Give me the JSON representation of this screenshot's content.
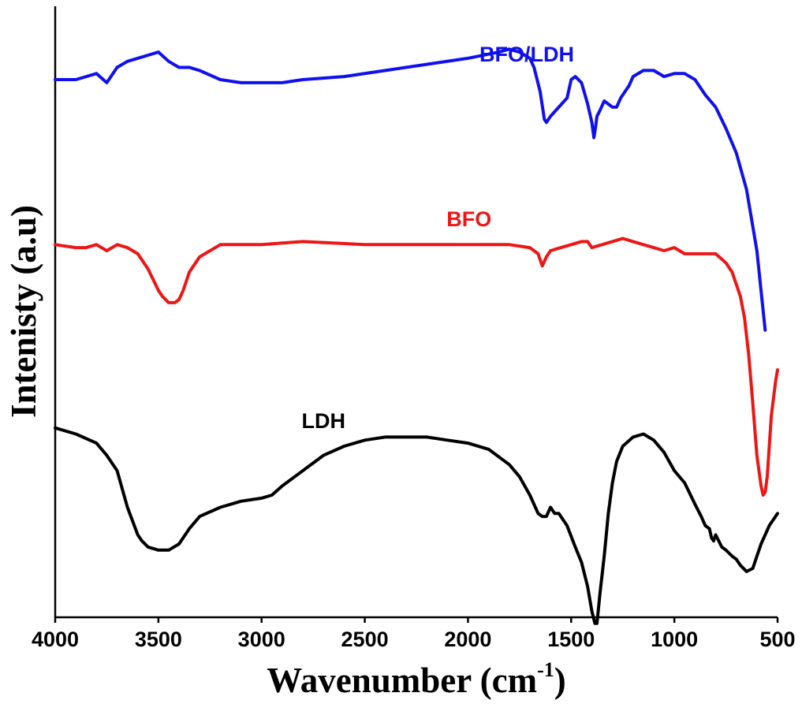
{
  "chart_data": {
    "type": "line",
    "title": "",
    "xlabel_main": "Wavenumber (cm",
    "xlabel_sup": "-1",
    "xlabel_close": ")",
    "ylabel": "Intenisty (a.u)",
    "xlim": [
      4000,
      500
    ],
    "x_reversed": true,
    "ylim": [
      0,
      100
    ],
    "grid": false,
    "legend": "labels placed next to each curve",
    "x_ticks": [
      4000,
      3500,
      3000,
      2500,
      2000,
      1500,
      1000,
      500
    ],
    "x_tick_labels": [
      "4000",
      "3500",
      "3000",
      "2500",
      "2000",
      "1500",
      "1000",
      "500"
    ],
    "series": [
      {
        "name": "BFO/LDH",
        "color": "#1010ee",
        "label_x": 1715,
        "label_y": 91,
        "x": [
          4000,
          3900,
          3800,
          3750,
          3700,
          3650,
          3600,
          3550,
          3500,
          3450,
          3400,
          3350,
          3300,
          3200,
          3100,
          3000,
          2900,
          2800,
          2600,
          2400,
          2200,
          2000,
          1850,
          1800,
          1750,
          1700,
          1680,
          1650,
          1630,
          1620,
          1600,
          1560,
          1520,
          1500,
          1480,
          1450,
          1420,
          1400,
          1390,
          1385,
          1375,
          1360,
          1340,
          1300,
          1280,
          1260,
          1220,
          1200,
          1150,
          1100,
          1050,
          1000,
          950,
          900,
          850,
          800,
          750,
          700,
          650,
          600,
          560
        ],
        "y": [
          88,
          88,
          89,
          87.5,
          90,
          91,
          91.5,
          92,
          92.5,
          91,
          90,
          90,
          89.5,
          88,
          87.5,
          87.5,
          87.5,
          88,
          88.5,
          89.5,
          90.5,
          91.5,
          92.5,
          93,
          92.5,
          91.5,
          90,
          86,
          81.5,
          81,
          82,
          83.5,
          85,
          88,
          88.5,
          87.5,
          84,
          81,
          78.5,
          79.5,
          82,
          83,
          84.5,
          83.5,
          83.5,
          85,
          87,
          88.5,
          89.5,
          89.5,
          88.5,
          89,
          89,
          88,
          85.5,
          83.5,
          80,
          76,
          70,
          60,
          47
        ]
      },
      {
        "name": "BFO",
        "color": "#ee1515",
        "label_x": 1995,
        "label_y": 64,
        "x": [
          4000,
          3900,
          3850,
          3800,
          3750,
          3700,
          3650,
          3600,
          3550,
          3500,
          3480,
          3450,
          3420,
          3400,
          3380,
          3350,
          3300,
          3200,
          3100,
          3000,
          2800,
          2500,
          2000,
          1800,
          1700,
          1660,
          1640,
          1620,
          1600,
          1550,
          1500,
          1450,
          1420,
          1400,
          1350,
          1300,
          1250,
          1200,
          1150,
          1100,
          1050,
          1000,
          950,
          900,
          850,
          800,
          750,
          720,
          700,
          680,
          660,
          640,
          620,
          600,
          580,
          570,
          560,
          550,
          540,
          530,
          510,
          500
        ],
        "y": [
          61,
          60.5,
          60.5,
          61,
          60,
          61,
          60.5,
          59.5,
          57,
          53.5,
          52.5,
          51.5,
          51.5,
          52,
          53.5,
          56.5,
          59,
          61,
          61,
          61,
          61.5,
          61,
          61,
          61,
          60.5,
          59.5,
          57.5,
          59,
          60,
          60.5,
          61,
          61.5,
          61.5,
          60.5,
          61,
          61.5,
          62,
          61.5,
          61,
          60.5,
          60,
          60.5,
          59.5,
          59.5,
          59.5,
          59.5,
          58,
          56.5,
          54.5,
          52.5,
          49,
          43,
          35,
          26.5,
          21.5,
          20,
          20.5,
          23,
          28,
          33,
          38.5,
          40.5
        ]
      },
      {
        "name": "LDH",
        "color": "#000000",
        "label_x": 2700,
        "label_y": 31,
        "x": [
          4000,
          3900,
          3800,
          3750,
          3700,
          3650,
          3600,
          3580,
          3550,
          3500,
          3450,
          3400,
          3350,
          3300,
          3200,
          3100,
          3000,
          2950,
          2900,
          2800,
          2700,
          2600,
          2500,
          2400,
          2300,
          2200,
          2100,
          2000,
          1900,
          1800,
          1750,
          1700,
          1660,
          1640,
          1620,
          1600,
          1580,
          1560,
          1520,
          1480,
          1450,
          1420,
          1400,
          1385,
          1375,
          1360,
          1340,
          1320,
          1300,
          1280,
          1250,
          1200,
          1150,
          1100,
          1050,
          1000,
          950,
          900,
          870,
          850,
          830,
          820,
          810,
          800,
          770,
          750,
          720,
          700,
          680,
          650,
          620,
          600,
          580,
          560,
          540,
          520,
          500
        ],
        "y": [
          31,
          30,
          28.5,
          26.5,
          24,
          18,
          13.5,
          12.5,
          11.5,
          11,
          11,
          12,
          14.5,
          16.5,
          18,
          19,
          19.5,
          20,
          21.5,
          24,
          26.5,
          28,
          29,
          29.5,
          29.5,
          29.5,
          29,
          28.5,
          27.5,
          25,
          23,
          20,
          17,
          16.5,
          16.5,
          18,
          17,
          17,
          15,
          11.5,
          9,
          5,
          1,
          -1,
          -1,
          4,
          10,
          17,
          22,
          25.5,
          28,
          29.5,
          30,
          29,
          27,
          24,
          22,
          18.5,
          16.5,
          15,
          14.5,
          13,
          12.5,
          13.5,
          11.5,
          11,
          10,
          9.5,
          8.5,
          7.5,
          8,
          10,
          12,
          13.5,
          15,
          16,
          17
        ]
      }
    ]
  }
}
